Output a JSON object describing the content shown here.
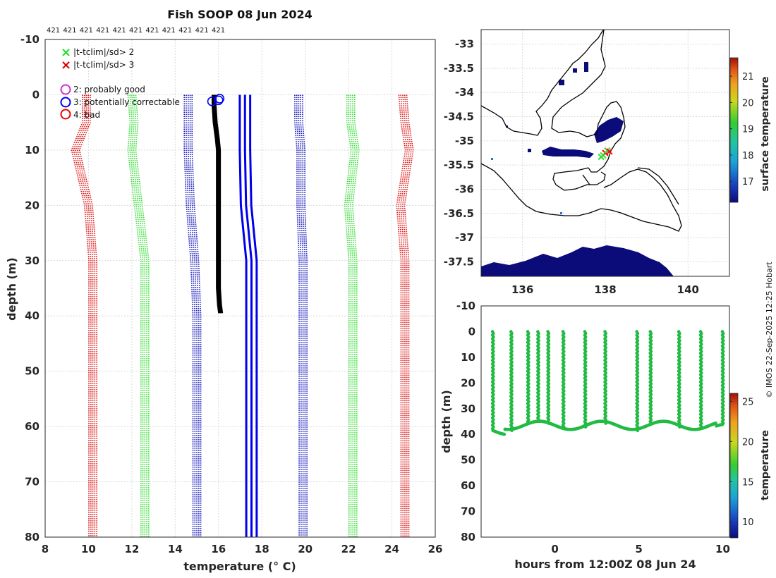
{
  "title": "Fish SOOP 08 Jun 2024",
  "count_labels": [
    "421",
    "421",
    "421",
    "421",
    "421",
    "421",
    "421",
    "421",
    "421",
    "421",
    "421"
  ],
  "credit": "© IMOS 22-Sep-2025 12:25 Hobart",
  "legend": {
    "flag_items": [
      {
        "symbol": "×",
        "label": "|t-tclim|/sd> 2",
        "color": "#22dd22"
      },
      {
        "symbol": "×",
        "label": "|t-tclim|/sd> 3",
        "color": "#dd0000"
      }
    ],
    "qc_items": [
      {
        "label": "2: probably good",
        "color": "#cc33cc"
      },
      {
        "label": "3: potentially correctable",
        "color": "#0000ee"
      },
      {
        "label": "4: bad",
        "color": "#ee0000"
      }
    ]
  },
  "colors": {
    "sd3": "#dd1111",
    "sd2": "#33dd33",
    "sd1": "#1111bb",
    "mean": "#0000ee",
    "obs": "#000000",
    "track": "#22bb44"
  },
  "chart_data": [
    {
      "type": "line",
      "name": "profile",
      "xlabel": "temperature (° C)",
      "ylabel": "depth (m)",
      "xlim": [
        8,
        26
      ],
      "ylim": [
        -10,
        80
      ],
      "xticks": [
        8,
        10,
        12,
        14,
        16,
        18,
        20,
        22,
        24,
        26
      ],
      "yticks": [
        -10,
        0,
        10,
        20,
        30,
        40,
        50,
        60,
        70,
        80
      ],
      "depths": [
        0,
        5,
        10,
        20,
        30,
        40,
        50,
        60,
        70,
        80
      ],
      "climatology": {
        "mean": [
          17.1,
          17.1,
          17.1,
          17.15,
          17.4,
          17.4,
          17.4,
          17.4,
          17.4,
          17.4
        ],
        "plus_1sd": [
          19.7,
          19.7,
          19.8,
          19.8,
          19.9,
          19.9,
          19.9,
          19.9,
          19.9,
          19.9
        ],
        "minus_1sd": [
          14.6,
          14.6,
          14.6,
          14.7,
          14.9,
          15.0,
          15.0,
          15.0,
          15.0,
          15.0
        ],
        "plus_2sd": [
          22.1,
          22.1,
          22.3,
          22.0,
          22.2,
          22.2,
          22.2,
          22.2,
          22.2,
          22.2
        ],
        "minus_2sd": [
          12.0,
          12.1,
          12.0,
          12.3,
          12.6,
          12.6,
          12.6,
          12.6,
          12.6,
          12.6
        ],
        "plus_3sd": [
          24.5,
          24.6,
          24.8,
          24.4,
          24.6,
          24.6,
          24.6,
          24.6,
          24.6,
          24.6
        ],
        "minus_3sd": [
          9.9,
          9.9,
          9.4,
          10.0,
          10.2,
          10.2,
          10.2,
          10.2,
          10.2,
          10.2
        ]
      },
      "observed": {
        "depths": [
          0,
          2,
          5,
          8,
          10,
          15,
          20,
          25,
          30,
          35,
          38,
          39.5
        ],
        "temp": [
          15.8,
          15.8,
          15.85,
          15.95,
          16.0,
          16.0,
          16.0,
          16.0,
          16.0,
          16.0,
          16.05,
          16.1
        ]
      },
      "qc_markers": [
        {
          "temp": 15.7,
          "depth": 1.2
        },
        {
          "temp": 16.0,
          "depth": 1.0
        },
        {
          "temp": 16.05,
          "depth": 0.7
        }
      ]
    },
    {
      "type": "map",
      "name": "map",
      "xlim": [
        135,
        141
      ],
      "ylim": [
        -37.8,
        -32.7
      ],
      "xticks": [
        136,
        138,
        140
      ],
      "yticks": [
        -33,
        -33.5,
        -34,
        -34.5,
        -35,
        -35.5,
        -36,
        -36.5,
        -37,
        -37.5
      ],
      "colorbar": {
        "label": "surface temperature",
        "ticks": [
          17,
          18,
          19,
          20,
          21
        ],
        "range": [
          16.2,
          21.7
        ]
      },
      "track_points": [
        [
          137.95,
          -35.3
        ],
        [
          138.0,
          -35.25
        ],
        [
          138.05,
          -35.2
        ],
        [
          138.1,
          -35.22
        ],
        [
          137.9,
          -35.33
        ]
      ]
    },
    {
      "type": "scatter",
      "name": "time-depth",
      "xlabel": "hours from 12:00Z 08 Jun 24",
      "ylabel": "depth (m)",
      "xlim": [
        -4.4,
        10.4
      ],
      "ylim": [
        -10,
        80
      ],
      "xticks": [
        0,
        5,
        10
      ],
      "yticks": [
        -10,
        0,
        10,
        20,
        30,
        40,
        50,
        60,
        70,
        80
      ],
      "dive_times": [
        -3.7,
        -2.6,
        -1.6,
        -1.0,
        -0.4,
        0.5,
        1.8,
        3.0,
        4.9,
        5.7,
        7.4,
        8.7,
        10.0
      ],
      "bottom_depth": 36.5,
      "colorbar": {
        "label": "temperature",
        "ticks": [
          10,
          15,
          20,
          25
        ],
        "range": [
          8,
          26
        ]
      }
    }
  ]
}
